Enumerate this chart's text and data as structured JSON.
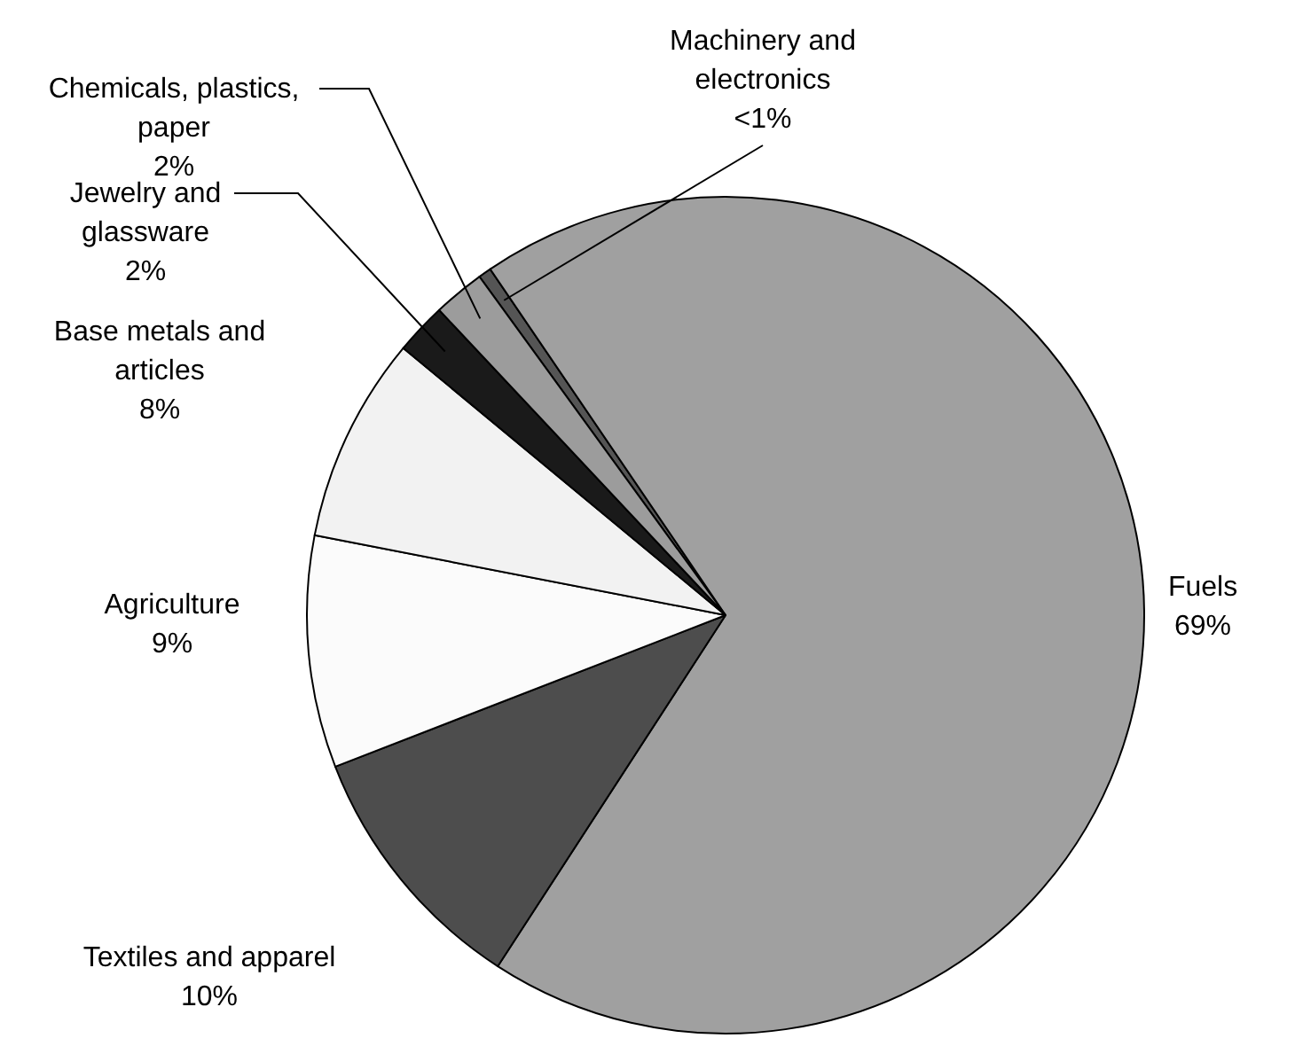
{
  "chart_data": {
    "type": "pie",
    "categories": [
      "Machinery and electronics",
      "Fuels",
      "Textiles and apparel",
      "Agriculture",
      "Base metals and articles",
      "Jewelry and glassware",
      "Chemicals, plastics, paper"
    ],
    "values": [
      0.5,
      69,
      10,
      9,
      8,
      2,
      2
    ],
    "value_labels": [
      "<1%",
      "69%",
      "10%",
      "9%",
      "8%",
      "2%",
      "2%"
    ],
    "colors": [
      "#555555",
      "#a0a0a0",
      "#4d4d4d",
      "#fbfbfb",
      "#f2f2f2",
      "#1a1a1a",
      "#9c9c9c"
    ]
  }
}
